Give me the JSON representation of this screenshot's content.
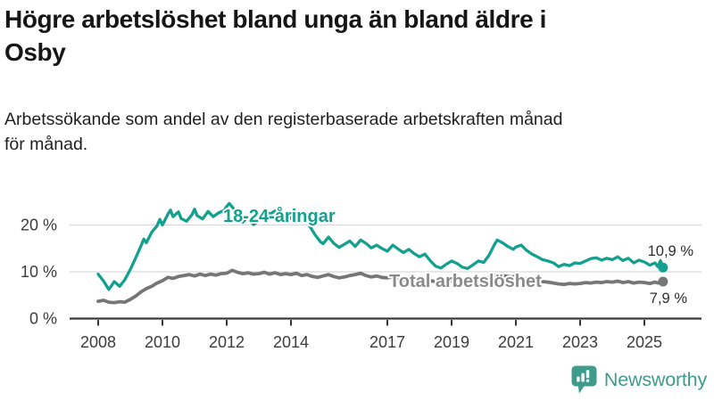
{
  "header": {
    "title_lines": [
      "Högre arbetslöshet bland unga än bland äldre i",
      "Osby"
    ],
    "subtitle_lines": [
      "Arbetssökande som andel av den registerbaserade arbetskraften månad",
      "för månad."
    ]
  },
  "branding": {
    "name": "Newsworthy"
  },
  "colors": {
    "young": "#14a08f",
    "total": "#767676",
    "total_label": "#8a8a8a",
    "grid": "#d9d9d9",
    "axis": "#3a3a3a",
    "tick_text": "#3c3c3c",
    "value_text": "#2d2d2d",
    "logo": "#3f9c8d",
    "background": "#ffffff"
  },
  "chart_data": {
    "type": "line",
    "title": "Högre arbetslöshet bland unga än bland äldre i Osby",
    "xlabel": "",
    "ylabel": "",
    "x_range": [
      2007.6,
      2026.2
    ],
    "ylim": [
      0,
      27
    ],
    "grid": "horizontal",
    "legend_position": "inline-labels",
    "x_ticks": [
      {
        "year": 2008,
        "label": "2008"
      },
      {
        "year": 2010,
        "label": "2010"
      },
      {
        "year": 2012,
        "label": "2012"
      },
      {
        "year": 2014,
        "label": "2014"
      },
      {
        "year": 2017,
        "label": "2017"
      },
      {
        "year": 2019,
        "label": "2019"
      },
      {
        "year": 2021,
        "label": "2021"
      },
      {
        "year": 2023,
        "label": "2023"
      },
      {
        "year": 2025,
        "label": "2025"
      }
    ],
    "y_ticks": [
      {
        "value": 0,
        "label": "0 %"
      },
      {
        "value": 10,
        "label": "10 %"
      },
      {
        "value": 20,
        "label": "20 %"
      }
    ],
    "series": [
      {
        "id": "young",
        "name": "18-24-åringar",
        "color": "#14a08f",
        "end_label": "10,9 %",
        "end_value": 10.9,
        "points": [
          [
            2008.0,
            9.5
          ],
          [
            2008.17,
            8.0
          ],
          [
            2008.33,
            6.2
          ],
          [
            2008.5,
            7.9
          ],
          [
            2008.67,
            6.9
          ],
          [
            2008.83,
            8.3
          ],
          [
            2009.0,
            10.5
          ],
          [
            2009.17,
            13.0
          ],
          [
            2009.33,
            15.5
          ],
          [
            2009.42,
            17.0
          ],
          [
            2009.5,
            16.2
          ],
          [
            2009.67,
            18.5
          ],
          [
            2009.83,
            19.8
          ],
          [
            2009.92,
            21.2
          ],
          [
            2010.0,
            20.0
          ],
          [
            2010.17,
            22.3
          ],
          [
            2010.25,
            23.2
          ],
          [
            2010.33,
            21.8
          ],
          [
            2010.5,
            22.8
          ],
          [
            2010.58,
            21.4
          ],
          [
            2010.75,
            20.8
          ],
          [
            2010.92,
            22.2
          ],
          [
            2011.0,
            23.4
          ],
          [
            2011.08,
            22.0
          ],
          [
            2011.25,
            21.3
          ],
          [
            2011.42,
            22.9
          ],
          [
            2011.58,
            21.8
          ],
          [
            2011.75,
            22.6
          ],
          [
            2011.92,
            23.1
          ],
          [
            2012.0,
            24.0
          ],
          [
            2012.08,
            24.6
          ],
          [
            2012.25,
            23.2
          ],
          [
            2012.42,
            21.9
          ],
          [
            2012.5,
            20.6
          ],
          [
            2012.67,
            21.8
          ],
          [
            2012.83,
            20.1
          ],
          [
            2013.0,
            20.9
          ],
          [
            2013.17,
            23.4
          ],
          [
            2013.33,
            22.3
          ],
          [
            2013.5,
            23.0
          ],
          [
            2013.67,
            21.9
          ],
          [
            2013.83,
            22.6
          ],
          [
            2014.0,
            21.4
          ],
          [
            2014.17,
            22.1
          ],
          [
            2014.33,
            20.9
          ],
          [
            2014.5,
            21.6
          ],
          [
            2014.58,
            19.8
          ],
          [
            2014.75,
            17.9
          ],
          [
            2014.92,
            16.4
          ],
          [
            2015.0,
            16.0
          ],
          [
            2015.17,
            17.4
          ],
          [
            2015.33,
            16.1
          ],
          [
            2015.5,
            15.2
          ],
          [
            2015.67,
            15.9
          ],
          [
            2015.83,
            16.6
          ],
          [
            2016.0,
            15.4
          ],
          [
            2016.17,
            16.8
          ],
          [
            2016.33,
            16.1
          ],
          [
            2016.5,
            15.1
          ],
          [
            2016.67,
            15.7
          ],
          [
            2016.83,
            15.0
          ],
          [
            2017.0,
            14.4
          ],
          [
            2017.17,
            15.7
          ],
          [
            2017.33,
            14.9
          ],
          [
            2017.5,
            14.1
          ],
          [
            2017.67,
            14.8
          ],
          [
            2017.83,
            13.9
          ],
          [
            2018.0,
            13.2
          ],
          [
            2018.17,
            13.8
          ],
          [
            2018.33,
            12.4
          ],
          [
            2018.5,
            11.2
          ],
          [
            2018.67,
            10.8
          ],
          [
            2018.83,
            11.6
          ],
          [
            2019.0,
            12.3
          ],
          [
            2019.17,
            11.8
          ],
          [
            2019.33,
            11.0
          ],
          [
            2019.5,
            10.7
          ],
          [
            2019.67,
            11.5
          ],
          [
            2019.83,
            12.3
          ],
          [
            2020.0,
            12.0
          ],
          [
            2020.17,
            13.6
          ],
          [
            2020.33,
            15.8
          ],
          [
            2020.42,
            16.8
          ],
          [
            2020.58,
            16.2
          ],
          [
            2020.75,
            15.4
          ],
          [
            2020.92,
            14.8
          ],
          [
            2021.0,
            15.3
          ],
          [
            2021.17,
            15.7
          ],
          [
            2021.33,
            14.6
          ],
          [
            2021.5,
            13.8
          ],
          [
            2021.67,
            13.2
          ],
          [
            2021.83,
            12.6
          ],
          [
            2022.0,
            12.3
          ],
          [
            2022.17,
            11.9
          ],
          [
            2022.33,
            11.1
          ],
          [
            2022.5,
            11.6
          ],
          [
            2022.67,
            11.3
          ],
          [
            2022.83,
            11.9
          ],
          [
            2023.0,
            11.8
          ],
          [
            2023.17,
            12.3
          ],
          [
            2023.33,
            12.8
          ],
          [
            2023.5,
            13.0
          ],
          [
            2023.67,
            12.5
          ],
          [
            2023.83,
            12.9
          ],
          [
            2024.0,
            12.6
          ],
          [
            2024.17,
            13.2
          ],
          [
            2024.33,
            12.4
          ],
          [
            2024.5,
            12.9
          ],
          [
            2024.67,
            11.9
          ],
          [
            2024.83,
            12.5
          ],
          [
            2025.0,
            12.1
          ],
          [
            2025.17,
            11.4
          ],
          [
            2025.33,
            11.9
          ],
          [
            2025.42,
            11.1
          ],
          [
            2025.5,
            12.4
          ],
          [
            2025.58,
            10.9
          ]
        ]
      },
      {
        "id": "total",
        "name": "Total arbetslöshet",
        "color": "#767676",
        "end_label": "7,9 %",
        "end_value": 7.9,
        "points": [
          [
            2008.0,
            3.7
          ],
          [
            2008.17,
            3.9
          ],
          [
            2008.33,
            3.5
          ],
          [
            2008.5,
            3.4
          ],
          [
            2008.67,
            3.6
          ],
          [
            2008.83,
            3.5
          ],
          [
            2009.0,
            4.1
          ],
          [
            2009.17,
            4.8
          ],
          [
            2009.33,
            5.7
          ],
          [
            2009.5,
            6.4
          ],
          [
            2009.67,
            6.9
          ],
          [
            2009.83,
            7.6
          ],
          [
            2010.0,
            8.1
          ],
          [
            2010.17,
            8.8
          ],
          [
            2010.33,
            8.6
          ],
          [
            2010.5,
            9.0
          ],
          [
            2010.67,
            9.2
          ],
          [
            2010.83,
            9.4
          ],
          [
            2011.0,
            9.1
          ],
          [
            2011.17,
            9.5
          ],
          [
            2011.33,
            9.2
          ],
          [
            2011.5,
            9.5
          ],
          [
            2011.67,
            9.3
          ],
          [
            2011.83,
            9.6
          ],
          [
            2012.0,
            9.7
          ],
          [
            2012.17,
            10.3
          ],
          [
            2012.33,
            9.9
          ],
          [
            2012.5,
            9.6
          ],
          [
            2012.67,
            9.8
          ],
          [
            2012.83,
            9.5
          ],
          [
            2013.0,
            9.6
          ],
          [
            2013.17,
            9.9
          ],
          [
            2013.33,
            9.5
          ],
          [
            2013.5,
            9.8
          ],
          [
            2013.67,
            9.4
          ],
          [
            2013.83,
            9.6
          ],
          [
            2014.0,
            9.4
          ],
          [
            2014.17,
            9.7
          ],
          [
            2014.33,
            9.2
          ],
          [
            2014.5,
            9.4
          ],
          [
            2014.67,
            9.0
          ],
          [
            2014.83,
            8.8
          ],
          [
            2015.0,
            9.1
          ],
          [
            2015.17,
            9.4
          ],
          [
            2015.33,
            9.0
          ],
          [
            2015.5,
            8.7
          ],
          [
            2015.67,
            8.9
          ],
          [
            2015.83,
            9.2
          ],
          [
            2016.0,
            9.4
          ],
          [
            2016.17,
            9.7
          ],
          [
            2016.33,
            9.2
          ],
          [
            2016.5,
            8.9
          ],
          [
            2016.67,
            9.1
          ],
          [
            2016.83,
            8.8
          ],
          [
            2017.0,
            8.7
          ],
          [
            2017.17,
            8.9
          ],
          [
            2017.33,
            8.5
          ],
          [
            2017.5,
            8.2
          ],
          [
            2017.67,
            8.4
          ],
          [
            2017.83,
            8.1
          ],
          [
            2018.0,
            8.2
          ],
          [
            2018.17,
            8.4
          ],
          [
            2018.33,
            8.1
          ],
          [
            2018.5,
            7.9
          ],
          [
            2018.67,
            8.0
          ],
          [
            2018.83,
            8.2
          ],
          [
            2019.0,
            8.1
          ],
          [
            2019.17,
            8.3
          ],
          [
            2019.33,
            8.0
          ],
          [
            2019.5,
            8.2
          ],
          [
            2019.67,
            8.3
          ],
          [
            2019.83,
            8.5
          ],
          [
            2020.0,
            8.4
          ],
          [
            2020.17,
            8.8
          ],
          [
            2020.33,
            9.2
          ],
          [
            2020.5,
            9.3
          ],
          [
            2020.67,
            9.1
          ],
          [
            2020.83,
            8.9
          ],
          [
            2021.0,
            9.0
          ],
          [
            2021.17,
            8.8
          ],
          [
            2021.33,
            8.5
          ],
          [
            2021.5,
            8.3
          ],
          [
            2021.67,
            8.1
          ],
          [
            2021.83,
            7.9
          ],
          [
            2022.0,
            7.8
          ],
          [
            2022.17,
            7.6
          ],
          [
            2022.33,
            7.4
          ],
          [
            2022.5,
            7.3
          ],
          [
            2022.67,
            7.5
          ],
          [
            2022.83,
            7.4
          ],
          [
            2023.0,
            7.5
          ],
          [
            2023.17,
            7.7
          ],
          [
            2023.33,
            7.6
          ],
          [
            2023.5,
            7.8
          ],
          [
            2023.67,
            7.7
          ],
          [
            2023.83,
            7.9
          ],
          [
            2024.0,
            7.8
          ],
          [
            2024.17,
            8.0
          ],
          [
            2024.33,
            7.7
          ],
          [
            2024.5,
            7.9
          ],
          [
            2024.67,
            7.6
          ],
          [
            2024.83,
            7.8
          ],
          [
            2025.0,
            7.7
          ],
          [
            2025.17,
            7.5
          ],
          [
            2025.33,
            7.8
          ],
          [
            2025.42,
            7.6
          ],
          [
            2025.5,
            7.8
          ],
          [
            2025.58,
            7.9
          ]
        ]
      }
    ]
  }
}
